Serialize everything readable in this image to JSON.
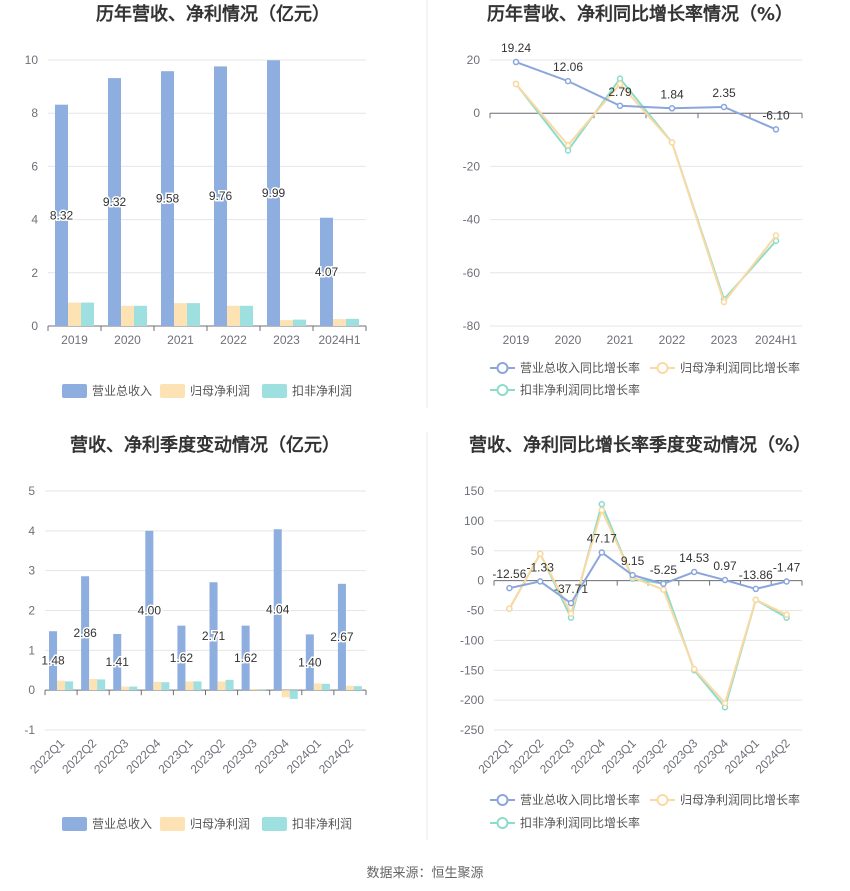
{
  "colors": {
    "revenue": "#8eaee0",
    "net_profit": "#fde2b4",
    "deducted_profit": "#9edfe0",
    "line_revenue": "#8aa6dc",
    "line_net": "#fbd9a0",
    "line_deducted": "#8cdccc",
    "grid": "#e6e6e6",
    "axis": "#6e7079"
  },
  "source_text": "数据来源：恒生聚源",
  "chart_data": [
    {
      "type": "bar",
      "title": "历年营收、净利情况（亿元）",
      "categories": [
        "2019",
        "2020",
        "2021",
        "2022",
        "2023",
        "2024H1"
      ],
      "ylim": [
        0,
        10
      ],
      "yticks": [
        0,
        2,
        4,
        6,
        8,
        10
      ],
      "grid": true,
      "legend_position": "bottom",
      "series": [
        {
          "name": "营业总收入",
          "values": [
            8.32,
            9.32,
            9.58,
            9.76,
            9.99,
            4.07
          ],
          "labels": [
            "8.32",
            "9.32",
            "9.58",
            "9.76",
            "9.99",
            "4.07"
          ]
        },
        {
          "name": "归母净利润",
          "values": [
            0.88,
            0.76,
            0.86,
            0.76,
            0.22,
            0.26
          ]
        },
        {
          "name": "扣非净利润",
          "values": [
            0.88,
            0.76,
            0.86,
            0.76,
            0.24,
            0.27
          ]
        }
      ]
    },
    {
      "type": "line",
      "title": "历年营收、净利同比增长率情况（%）",
      "categories": [
        "2019",
        "2020",
        "2021",
        "2022",
        "2023",
        "2024H1"
      ],
      "ylim": [
        -80,
        20
      ],
      "yticks": [
        -80,
        -60,
        -40,
        -20,
        0,
        20
      ],
      "grid": true,
      "legend_position": "bottom",
      "series": [
        {
          "name": "营业总收入同比增长率",
          "values": [
            19.24,
            12.06,
            2.79,
            1.84,
            2.35,
            -6.1
          ],
          "labels": [
            "19.24",
            "12.06",
            "2.79",
            "1.84",
            "2.35",
            "-6.10"
          ]
        },
        {
          "name": "归母净利润同比增长率",
          "values": [
            11,
            -12,
            11,
            -11,
            -71,
            -46
          ]
        },
        {
          "name": "扣非净利润同比增长率",
          "values": [
            11,
            -14,
            13,
            -11,
            -70,
            -48
          ]
        }
      ]
    },
    {
      "type": "bar",
      "title": "营收、净利季度变动情况（亿元）",
      "categories": [
        "2022Q1",
        "2022Q2",
        "2022Q3",
        "2022Q4",
        "2023Q1",
        "2023Q2",
        "2023Q3",
        "2023Q4",
        "2024Q1",
        "2024Q2"
      ],
      "ylim": [
        -1,
        5
      ],
      "yticks": [
        -1,
        0,
        1,
        2,
        3,
        4,
        5
      ],
      "grid": true,
      "legend_position": "bottom",
      "series": [
        {
          "name": "营业总收入",
          "values": [
            1.48,
            2.86,
            1.41,
            4.0,
            1.62,
            2.71,
            1.62,
            4.04,
            1.4,
            2.67
          ],
          "labels": [
            "1.48",
            "2.86",
            "1.41",
            "4.00",
            "1.62",
            "2.71",
            "1.62",
            "4.04",
            "1.40",
            "2.67"
          ]
        },
        {
          "name": "归母净利润",
          "values": [
            0.24,
            0.28,
            0.09,
            0.21,
            0.22,
            0.22,
            0.03,
            -0.18,
            0.17,
            0.11
          ]
        },
        {
          "name": "扣非净利润",
          "values": [
            0.22,
            0.27,
            0.09,
            0.2,
            0.22,
            0.26,
            0.01,
            -0.22,
            0.16,
            0.1
          ]
        }
      ]
    },
    {
      "type": "line",
      "title": "营收、净利同比增长率季度变动情况（%）",
      "categories": [
        "2022Q1",
        "2022Q2",
        "2022Q3",
        "2022Q4",
        "2023Q1",
        "2023Q2",
        "2023Q3",
        "2023Q4",
        "2024Q1",
        "2024Q2"
      ],
      "ylim": [
        -250,
        150
      ],
      "yticks": [
        -250,
        -200,
        -150,
        -100,
        -50,
        0,
        50,
        100,
        150
      ],
      "grid": true,
      "legend_position": "bottom",
      "series": [
        {
          "name": "营业总收入同比增长率",
          "values": [
            -12.56,
            -1.33,
            -37.71,
            47.17,
            9.15,
            -5.25,
            14.53,
            0.97,
            -13.86,
            -1.47
          ],
          "labels": [
            "-12.56",
            "-1.33",
            "-37.71",
            "47.17",
            "9.15",
            "-5.25",
            "14.53",
            "0.97",
            "-13.86",
            "-1.47"
          ]
        },
        {
          "name": "归母净利润同比增长率",
          "values": [
            -47,
            45,
            -55,
            118,
            5,
            -15,
            -148,
            -205,
            -32,
            -57
          ]
        },
        {
          "name": "扣非净利润同比增长率",
          "values": [
            -47,
            45,
            -62,
            128,
            3,
            -5,
            -150,
            -212,
            -32,
            -62
          ]
        }
      ]
    }
  ]
}
